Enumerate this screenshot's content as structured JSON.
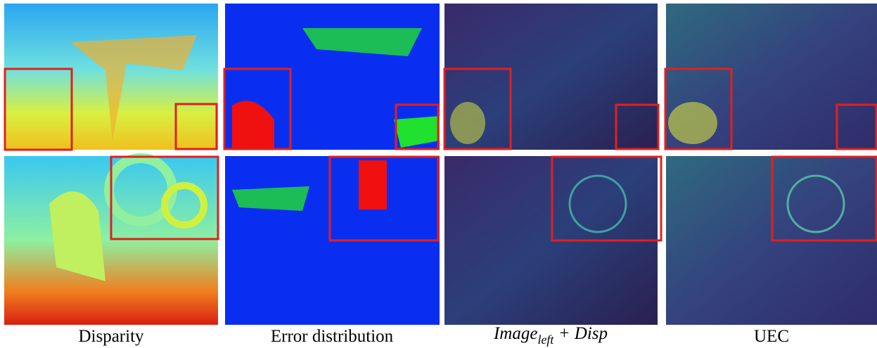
{
  "captions": {
    "disparity": "Disparity",
    "error": "Error distribution",
    "image_disp": {
      "base": "Image",
      "sub": "left",
      "rest": " + Disp"
    },
    "uec": "UEC"
  }
}
